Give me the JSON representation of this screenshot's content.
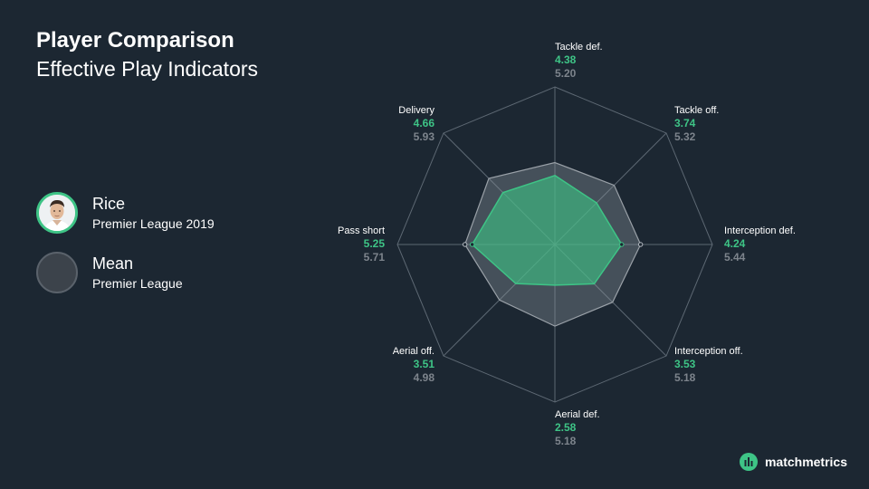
{
  "header": {
    "title": "Player Comparison",
    "subtitle": "Effective Play Indicators"
  },
  "legend": {
    "player": {
      "name": "Rice",
      "league": "Premier League 2019"
    },
    "mean": {
      "name": "Mean",
      "league": "Premier League"
    }
  },
  "brand": {
    "name": "matchmetrics"
  },
  "colors": {
    "background": "#1c2732",
    "player": "#3ec486",
    "mean": "#7d848c",
    "grid": "#5d6873"
  },
  "chart_data": {
    "type": "radar",
    "axes": [
      "Tackle def.",
      "Tackle off.",
      "Interception def.",
      "Interception off.",
      "Aerial def.",
      "Aerial off.",
      "Pass short",
      "Delivery"
    ],
    "series": [
      {
        "name": "Rice",
        "values": [
          4.38,
          3.74,
          4.24,
          3.53,
          2.58,
          3.51,
          5.25,
          4.66
        ]
      },
      {
        "name": "Mean",
        "values": [
          5.2,
          5.32,
          5.44,
          5.18,
          5.18,
          4.98,
          5.71,
          5.93
        ]
      }
    ],
    "value_labels": {
      "player": [
        "4.38",
        "3.74",
        "4.24",
        "3.53",
        "2.58",
        "3.51",
        "5.25",
        "4.66"
      ],
      "mean": [
        "5.20",
        "5.32",
        "5.44",
        "5.18",
        "5.18",
        "4.98",
        "5.71",
        "5.93"
      ]
    },
    "rmax": 10
  }
}
